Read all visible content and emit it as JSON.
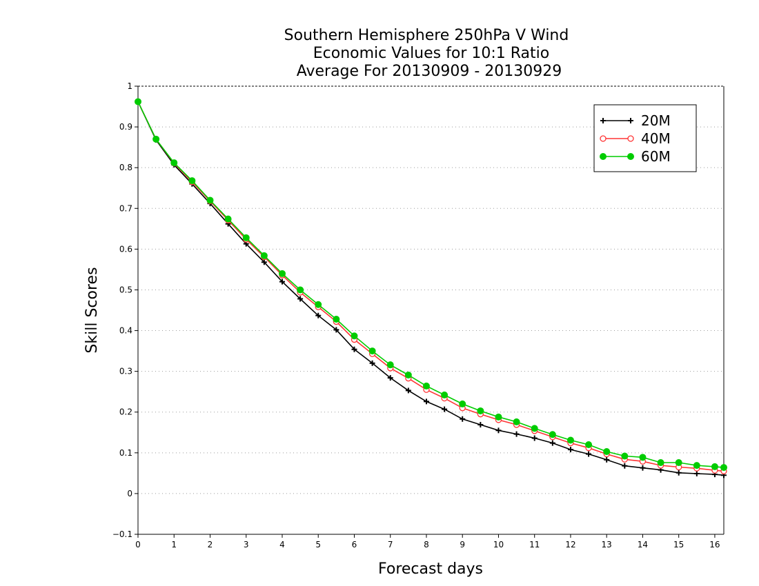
{
  "chart_data": {
    "type": "line",
    "title_lines": [
      "Southern Hemisphere 250hPa V Wind",
      "Economic Values for 10:1 Ratio",
      "Average For 20130909 - 20130929"
    ],
    "xlabel": "Forecast days",
    "ylabel": "Skill Scores",
    "xlim": [
      0,
      16.25
    ],
    "ylim": [
      -0.1,
      1
    ],
    "x_ticks": [
      "0",
      "1",
      "2",
      "3",
      "4",
      "5",
      "6",
      "7",
      "8",
      "9",
      "10",
      "11",
      "12",
      "13",
      "14",
      "15",
      "16"
    ],
    "y_ticks": [
      "−0.1",
      "0",
      "0.1",
      "0.2",
      "0.3",
      "0.4",
      "0.5",
      "0.6",
      "0.7",
      "0.8",
      "0.9",
      "1"
    ],
    "grid": true,
    "legend_position": "top-right",
    "x": [
      0,
      0.5,
      1,
      1.5,
      2,
      2.5,
      3,
      3.5,
      4,
      4.5,
      5,
      5.5,
      6,
      6.5,
      7,
      7.5,
      8,
      8.5,
      9,
      9.5,
      10,
      10.5,
      11,
      11.5,
      12,
      12.5,
      13,
      13.5,
      14,
      14.5,
      15,
      15.5,
      16,
      16.25
    ],
    "series": [
      {
        "name": "20M",
        "color": "#000000",
        "marker": "plus",
        "values": [
          0.962,
          0.868,
          0.807,
          0.76,
          0.712,
          0.662,
          0.613,
          0.568,
          0.52,
          0.478,
          0.437,
          0.402,
          0.354,
          0.32,
          0.284,
          0.253,
          0.226,
          0.207,
          0.183,
          0.169,
          0.155,
          0.146,
          0.136,
          0.124,
          0.108,
          0.097,
          0.083,
          0.068,
          0.063,
          0.058,
          0.051,
          0.049,
          0.047,
          0.045
        ]
      },
      {
        "name": "40M",
        "color": "#ff3333",
        "marker": "open-circle",
        "values": [
          0.962,
          0.87,
          0.811,
          0.765,
          0.718,
          0.671,
          0.624,
          0.581,
          0.536,
          0.494,
          0.458,
          0.422,
          0.378,
          0.343,
          0.308,
          0.283,
          0.255,
          0.234,
          0.21,
          0.195,
          0.181,
          0.169,
          0.154,
          0.139,
          0.124,
          0.112,
          0.097,
          0.084,
          0.079,
          0.069,
          0.065,
          0.062,
          0.057,
          0.055
        ]
      },
      {
        "name": "60M",
        "color": "#00cc00",
        "marker": "filled-circle",
        "values": [
          0.962,
          0.87,
          0.812,
          0.768,
          0.72,
          0.674,
          0.628,
          0.584,
          0.54,
          0.5,
          0.464,
          0.428,
          0.387,
          0.35,
          0.316,
          0.291,
          0.264,
          0.242,
          0.22,
          0.203,
          0.188,
          0.176,
          0.16,
          0.145,
          0.131,
          0.12,
          0.103,
          0.092,
          0.089,
          0.076,
          0.076,
          0.069,
          0.066,
          0.064
        ]
      }
    ]
  }
}
